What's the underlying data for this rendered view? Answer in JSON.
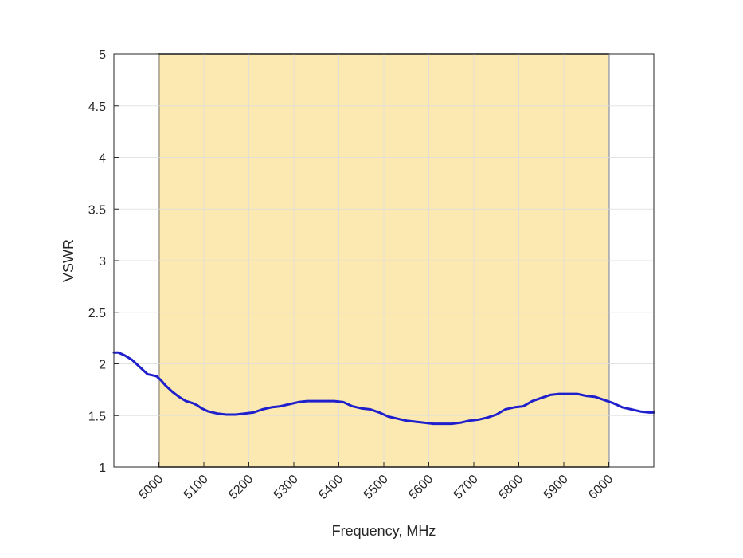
{
  "chart_data": {
    "type": "line",
    "title": "",
    "xlabel": "Frequency, MHz",
    "ylabel": "VSWR",
    "xlim": [
      4900,
      6100
    ],
    "ylim": [
      1,
      5
    ],
    "grid": true,
    "x_ticks": [
      5000,
      5100,
      5200,
      5300,
      5400,
      5500,
      5600,
      5700,
      5800,
      5900,
      6000
    ],
    "x_tick_labels": [
      "5000",
      "5100",
      "5200",
      "5300",
      "5400",
      "5500",
      "5600",
      "5700",
      "5800",
      "5900",
      "6000"
    ],
    "y_ticks": [
      1,
      1.5,
      2,
      2.5,
      3,
      3.5,
      4,
      4.5,
      5
    ],
    "y_tick_labels": [
      "1",
      "1.5",
      "2",
      "2.5",
      "3",
      "3.5",
      "4",
      "4.5",
      "5"
    ],
    "band": {
      "x_start": 5000,
      "x_end": 6000,
      "y_start": 1,
      "y_end": 5
    },
    "colors": {
      "band_fill": "#fce9b2",
      "band_edge": "#000000",
      "line": "#1f1fcc",
      "grid": "#dcdcdc",
      "axis": "#262626"
    },
    "series": [
      {
        "x": [
          4900,
          4910,
          4925,
          4940,
          4955,
          4965,
          4975,
          4985,
          4995,
          5005,
          5015,
          5030,
          5045,
          5060,
          5075,
          5085,
          5095,
          5110,
          5130,
          5150,
          5170,
          5190,
          5210,
          5230,
          5250,
          5270,
          5290,
          5310,
          5330,
          5350,
          5370,
          5390,
          5410,
          5430,
          5450,
          5470,
          5490,
          5510,
          5530,
          5550,
          5570,
          5590,
          5610,
          5630,
          5650,
          5670,
          5690,
          5710,
          5730,
          5750,
          5770,
          5790,
          5810,
          5830,
          5850,
          5870,
          5890,
          5910,
          5930,
          5950,
          5970,
          5990,
          6010,
          6030,
          6050,
          6070,
          6090,
          6100
        ],
        "y": [
          2.11,
          2.11,
          2.08,
          2.04,
          1.98,
          1.94,
          1.9,
          1.89,
          1.88,
          1.84,
          1.79,
          1.73,
          1.68,
          1.64,
          1.62,
          1.6,
          1.57,
          1.54,
          1.52,
          1.51,
          1.51,
          1.52,
          1.53,
          1.56,
          1.58,
          1.59,
          1.61,
          1.63,
          1.64,
          1.64,
          1.64,
          1.64,
          1.63,
          1.59,
          1.57,
          1.56,
          1.53,
          1.49,
          1.47,
          1.45,
          1.44,
          1.43,
          1.42,
          1.42,
          1.42,
          1.43,
          1.45,
          1.46,
          1.48,
          1.51,
          1.56,
          1.58,
          1.59,
          1.64,
          1.67,
          1.7,
          1.71,
          1.71,
          1.71,
          1.69,
          1.68,
          1.65,
          1.62,
          1.58,
          1.56,
          1.54,
          1.53,
          1.53
        ]
      }
    ]
  }
}
